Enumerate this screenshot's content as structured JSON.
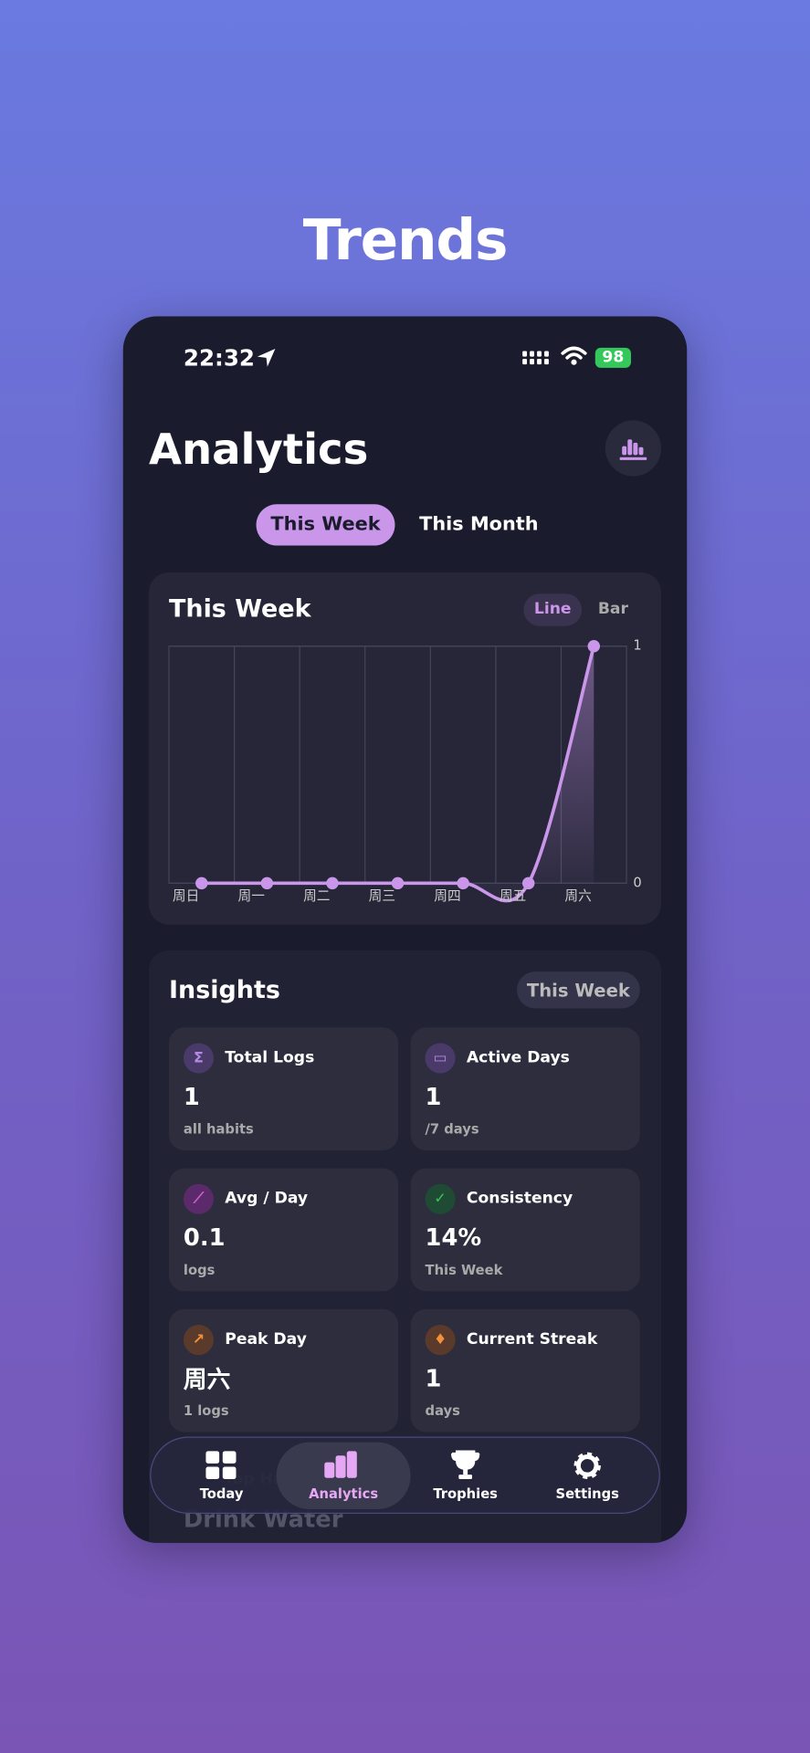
{
  "page_title": "Trends",
  "status": {
    "time": "22:32",
    "battery": "98"
  },
  "header": {
    "title": "Analytics"
  },
  "tabs": [
    "This Week",
    "This Month"
  ],
  "chart_data": {
    "type": "line",
    "title": "This Week",
    "toggles": [
      "Line",
      "Bar"
    ],
    "categories": [
      "周日",
      "周一",
      "周二",
      "周三",
      "周四",
      "周五",
      "周六"
    ],
    "values": [
      0,
      0,
      0,
      0,
      0,
      0,
      1
    ],
    "color": "#c996ea",
    "ylim": [
      0,
      1
    ],
    "yticks": [
      0,
      1
    ],
    "grid": true
  },
  "insights": {
    "title": "Insights",
    "period": "This Week",
    "tiles": [
      {
        "label": "Total Logs",
        "value": "1",
        "sub": "all habits"
      },
      {
        "label": "Active Days",
        "value": "1",
        "sub": "/7 days"
      },
      {
        "label": "Avg / Day",
        "value": "0.1",
        "sub": "logs"
      },
      {
        "label": "Consistency",
        "value": "14%",
        "sub": "This Week"
      },
      {
        "label": "Peak Day",
        "value": "周六",
        "sub": "1 logs"
      },
      {
        "label": "Current Streak",
        "value": "1",
        "sub": "days"
      }
    ]
  },
  "top_habit": {
    "label": "Top Habit",
    "value": "Drink Water"
  },
  "nav": [
    "Today",
    "Analytics",
    "Trophies",
    "Settings"
  ]
}
